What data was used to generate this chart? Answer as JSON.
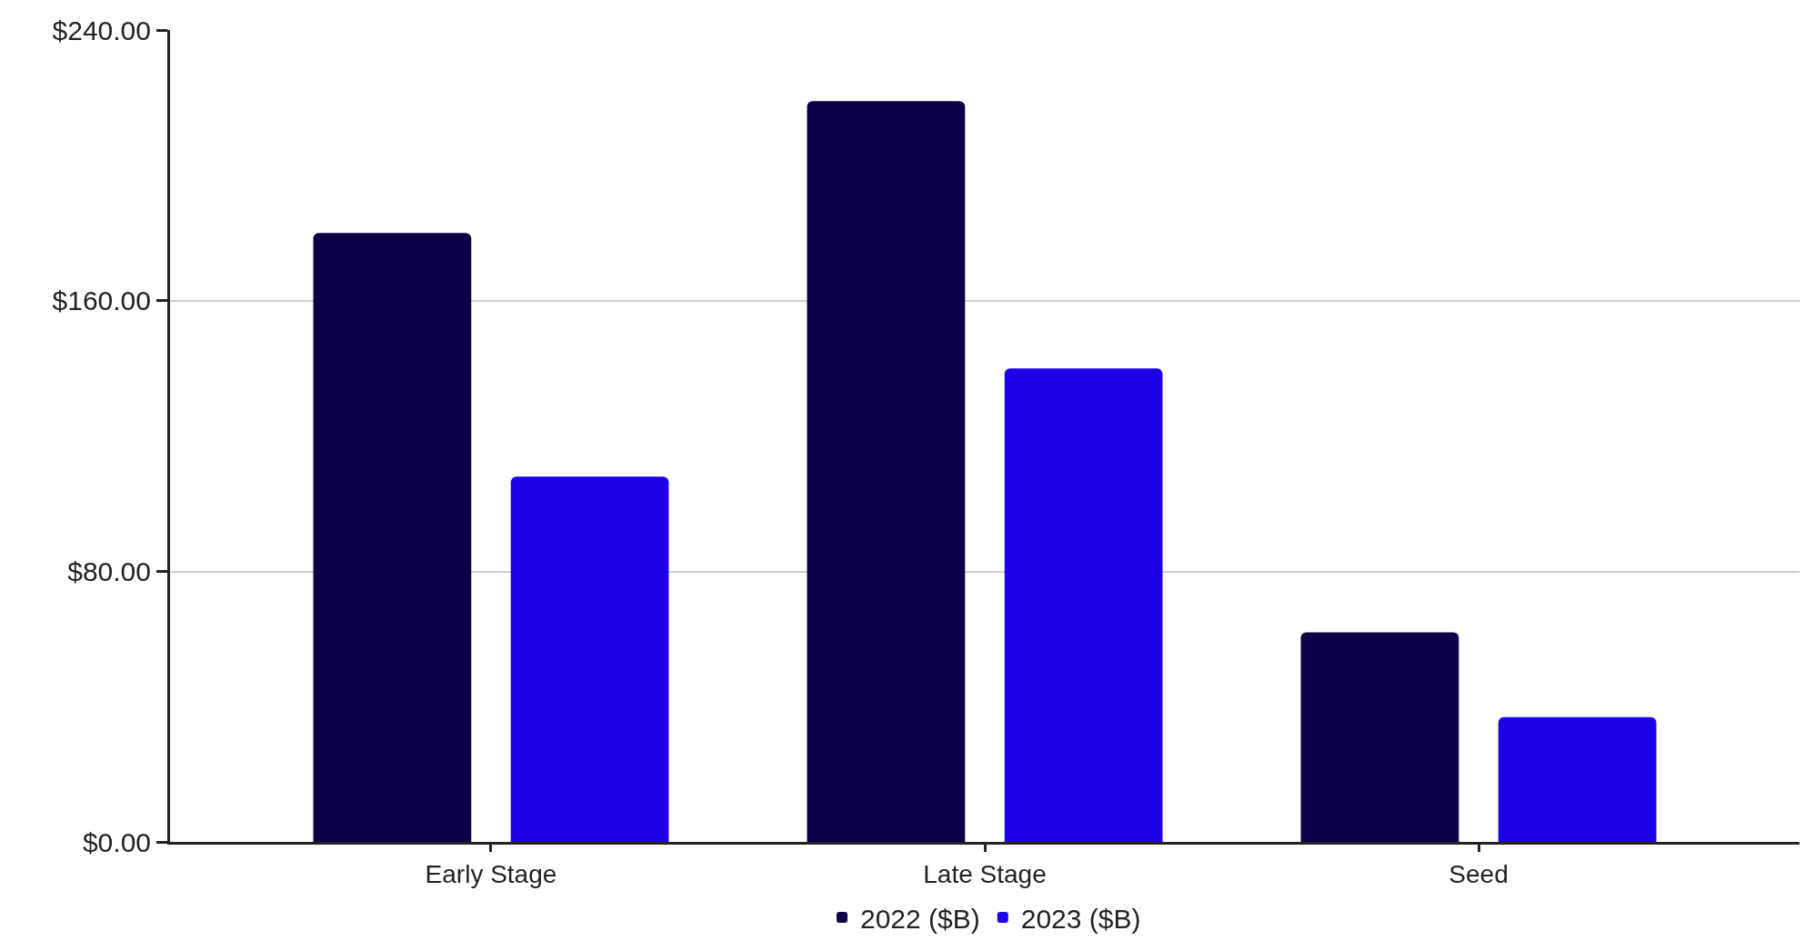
{
  "chart_data": {
    "type": "bar",
    "categories": [
      "Early Stage",
      "Late Stage",
      "Seed"
    ],
    "series": [
      {
        "name": "2022 ($B)",
        "color": "#0c0047",
        "values": [
          180,
          219,
          62
        ]
      },
      {
        "name": "2023 ($B)",
        "color": "#1e00e6",
        "values": [
          108,
          140,
          37
        ]
      }
    ],
    "ylim": [
      0,
      240
    ],
    "yticks": [
      {
        "value": 0,
        "label": "$0.00"
      },
      {
        "value": 80,
        "label": "$80.00"
      },
      {
        "value": 160,
        "label": "$160.00"
      },
      {
        "value": 240,
        "label": "$240.00"
      }
    ],
    "grid": "y",
    "legend": "bottom"
  }
}
